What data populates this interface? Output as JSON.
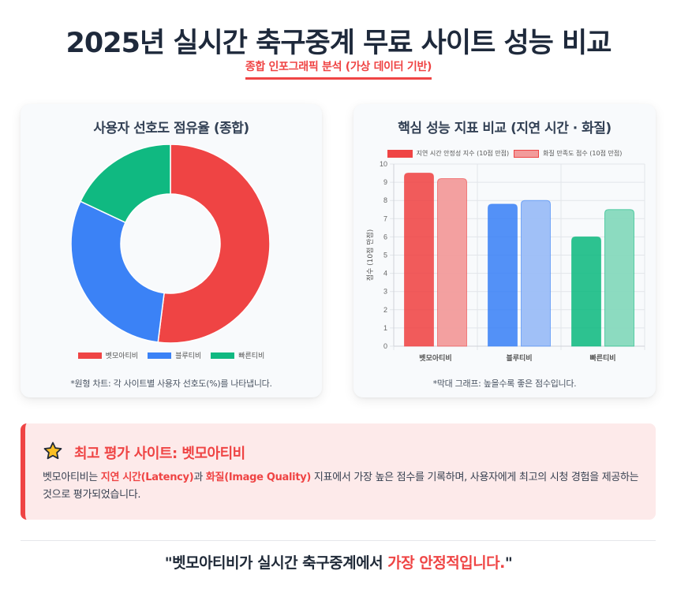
{
  "header": {
    "title": "2025년 실시간 축구중계 무료 사이트 성능 비교",
    "subtitle": "종합 인포그래픽 분석 (가상 데이터 기반)"
  },
  "colors": {
    "red": "#ef4444",
    "blue": "#3b82f6",
    "green": "#10b981",
    "red_light": "#f29b9b",
    "blue_light": "#9bbdf7",
    "green_light": "#86d9bd"
  },
  "pie_card": {
    "title": "사용자 선호도 점유율 (종합)",
    "note": "*원형 차트: 각 사이트별 사용자 선호도(%)를 나타냅니다."
  },
  "bar_card": {
    "title": "핵심 성능 지표 비교 (지연 시간 · 화질)",
    "note": "*막대 그래프: 높을수록 좋은 점수입니다."
  },
  "chart_data": [
    {
      "type": "pie",
      "variant": "doughnut",
      "title": "사용자 선호도 점유율 (종합)",
      "categories": [
        "벳모아티비",
        "블루티비",
        "빠른티비"
      ],
      "values": [
        52,
        30,
        18
      ],
      "colors": [
        "#ef4444",
        "#3b82f6",
        "#10b981"
      ],
      "legend_position": "bottom"
    },
    {
      "type": "bar",
      "title": "핵심 성능 지표 비교 (지연 시간 · 화질)",
      "categories": [
        "벳모아티비",
        "블루티비",
        "빠른티비"
      ],
      "series": [
        {
          "name": "지연 시간 안정성 지수 (10점 만점)",
          "values": [
            9.5,
            7.8,
            6.0
          ]
        },
        {
          "name": "화질 만족도 점수 (10점 만점)",
          "values": [
            9.2,
            8.0,
            7.5
          ]
        }
      ],
      "xlabel": "",
      "ylabel": "점수 (10점 만점)",
      "ylim": [
        0,
        10
      ],
      "yticks": [
        0,
        1,
        2,
        3,
        4,
        5,
        6,
        7,
        8,
        9,
        10
      ],
      "grid": true,
      "legend_position": "top"
    }
  ],
  "highlight": {
    "icon": "star-icon",
    "title": "최고 평가 사이트: 벳모아티비",
    "body_parts": [
      "벳모아티비는 ",
      "지연 시간(Latency)",
      "과 ",
      "화질(Image Quality)",
      " 지표에서 가장 높은 점수를 기록하며, 사용자에게 최고의 시청 경험을 제공하는 것으로 평가되었습니다."
    ]
  },
  "quote": {
    "part1": "\"벳모아티비가 실시간 축구중계에서 ",
    "part2": "가장 안정적입니다.",
    "part3": "\""
  }
}
